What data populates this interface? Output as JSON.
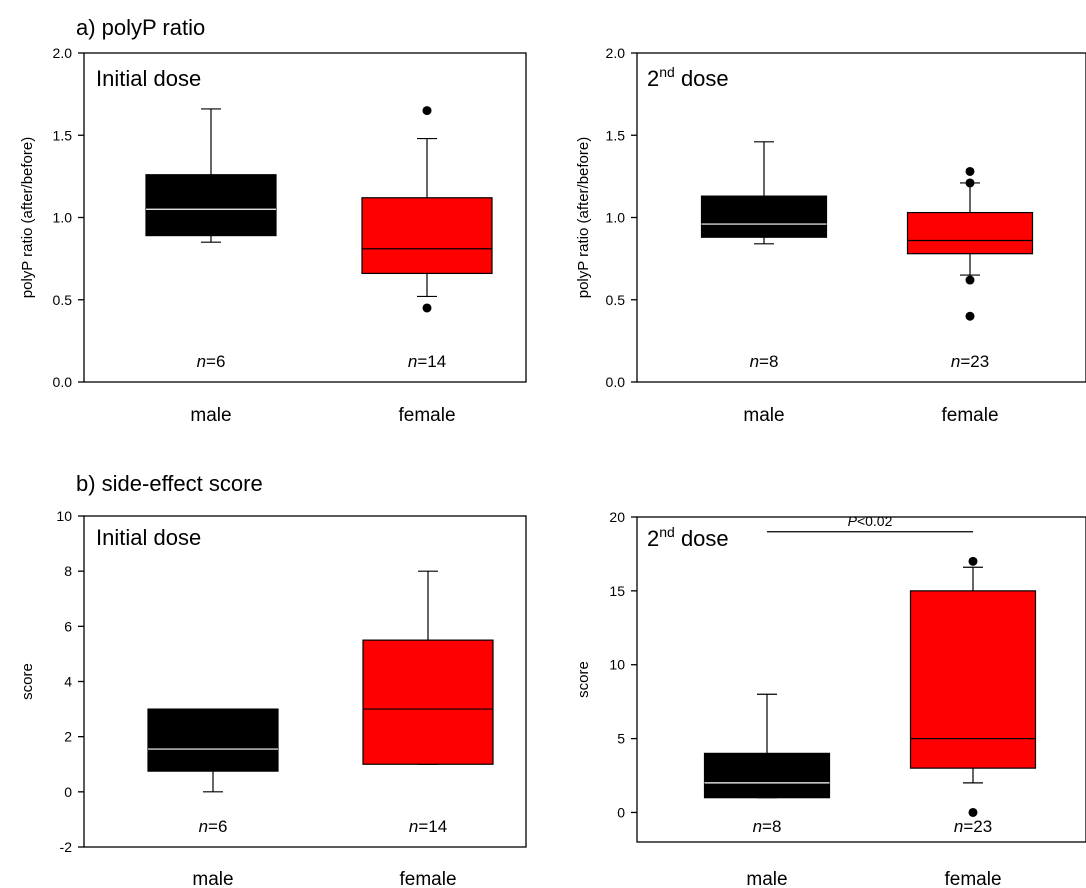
{
  "section_titles": {
    "a": "a) polyP ratio",
    "b": "b) side-effect score"
  },
  "colors": {
    "male": "#000000",
    "female": "#ff0000",
    "male_median": "#ffffff",
    "female_median": "#000000"
  },
  "chart_data": [
    {
      "type": "box",
      "panel_label": "Initial dose",
      "panel_sup": "",
      "ylabel": "polyP ratio (after/before)",
      "ylim": [
        0,
        2
      ],
      "yticks": [
        "0.0",
        "0.5",
        "1.0",
        "1.5",
        "2.0"
      ],
      "ytick_values": [
        0,
        0.5,
        1,
        1.5,
        2
      ],
      "categories": [
        "male",
        "female"
      ],
      "n_labels": [
        {
          "prefix": "n",
          "value": "=6"
        },
        {
          "prefix": "n",
          "value": "=14"
        }
      ],
      "boxes": [
        {
          "q1": 0.89,
          "median": 1.05,
          "q3": 1.26,
          "whisker_low": 0.85,
          "whisker_high": 1.66,
          "outliers": []
        },
        {
          "q1": 0.66,
          "median": 0.81,
          "q3": 1.12,
          "whisker_low": 0.52,
          "whisker_high": 1.48,
          "outliers": [
            1.65,
            0.45
          ]
        }
      ],
      "grid": false
    },
    {
      "type": "box",
      "panel_label": "2",
      "panel_sup": "nd",
      "panel_label_rest": " dose",
      "ylabel": "polyP ratio (after/before)",
      "ylim": [
        0,
        2
      ],
      "yticks": [
        "0.0",
        "0.5",
        "1.0",
        "1.5",
        "2.0"
      ],
      "ytick_values": [
        0,
        0.5,
        1,
        1.5,
        2
      ],
      "categories": [
        "male",
        "female"
      ],
      "n_labels": [
        {
          "prefix": "n",
          "value": "=8"
        },
        {
          "prefix": "n",
          "value": "=23"
        }
      ],
      "boxes": [
        {
          "q1": 0.88,
          "median": 0.96,
          "q3": 1.13,
          "whisker_low": 0.84,
          "whisker_high": 1.46,
          "outliers": []
        },
        {
          "q1": 0.78,
          "median": 0.86,
          "q3": 1.03,
          "whisker_low": 0.65,
          "whisker_high": 1.21,
          "outliers": [
            1.28,
            1.21,
            0.62,
            0.4
          ]
        }
      ],
      "grid": false
    },
    {
      "type": "box",
      "panel_label": "Initial dose",
      "panel_sup": "",
      "ylabel": "score",
      "ylim": [
        -2,
        10
      ],
      "yticks": [
        "-2",
        "0",
        "2",
        "4",
        "6",
        "8",
        "10"
      ],
      "ytick_values": [
        -2,
        0,
        2,
        4,
        6,
        8,
        10
      ],
      "categories": [
        "male",
        "female"
      ],
      "n_labels": [
        {
          "prefix": "n",
          "value": "=6"
        },
        {
          "prefix": "n",
          "value": "=14"
        }
      ],
      "boxes": [
        {
          "q1": 0.75,
          "median": 1.55,
          "q3": 3.0,
          "whisker_low": 0.0,
          "whisker_high": 3.0,
          "outliers": []
        },
        {
          "q1": 1.0,
          "median": 3.0,
          "q3": 5.5,
          "whisker_low": 1.0,
          "whisker_high": 8.0,
          "outliers": []
        }
      ],
      "grid": false
    },
    {
      "type": "box",
      "panel_label": "2",
      "panel_sup": "nd",
      "panel_label_rest": " dose",
      "ylabel": "score",
      "ylim": [
        -2,
        20
      ],
      "yticks": [
        "0",
        "5",
        "10",
        "15",
        "20"
      ],
      "ytick_values": [
        0,
        5,
        10,
        15,
        20
      ],
      "categories": [
        "male",
        "female"
      ],
      "n_labels": [
        {
          "prefix": "n",
          "value": "=8"
        },
        {
          "prefix": "n",
          "value": "=23"
        }
      ],
      "boxes": [
        {
          "q1": 1.0,
          "median": 2.0,
          "q3": 4.0,
          "whisker_low": 1.0,
          "whisker_high": 8.0,
          "outliers": []
        },
        {
          "q1": 3.0,
          "median": 5.0,
          "q3": 15.0,
          "whisker_low": 2.0,
          "whisker_high": 16.6,
          "outliers": [
            17.0,
            0.0
          ]
        }
      ],
      "annotation": {
        "prefix": "P",
        "value": "<0.02",
        "y": 19.0
      },
      "grid": false
    }
  ]
}
